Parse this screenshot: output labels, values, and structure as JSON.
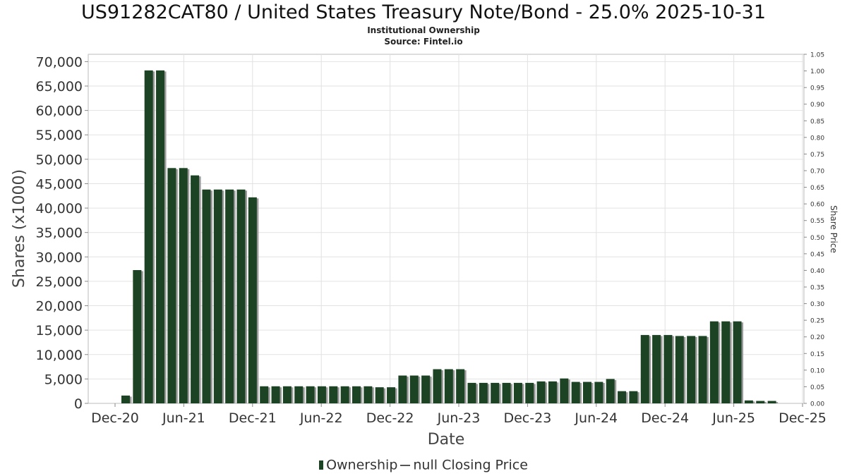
{
  "chart_data": {
    "type": "bar",
    "title": "US91282CAT80 / United States Treasury Note/Bond - 25.0% 2025-10-31",
    "subtitle_1": "Institutional Ownership",
    "subtitle_2": "Source: Fintel.io",
    "xlabel": "Date",
    "ylabel": "Shares (x1000)",
    "y2label": "Share Price",
    "ylim": [
      0,
      71500
    ],
    "y2lim": [
      0,
      1.05
    ],
    "grid": true,
    "legend_position": "bottom",
    "yticks": [
      "0",
      "5,000",
      "10,000",
      "15,000",
      "20,000",
      "25,000",
      "30,000",
      "35,000",
      "40,000",
      "45,000",
      "50,000",
      "55,000",
      "60,000",
      "65,000",
      "70,000"
    ],
    "y2ticks": [
      "0.00",
      "0.05",
      "0.10",
      "0.15",
      "0.20",
      "0.25",
      "0.30",
      "0.35",
      "0.40",
      "0.45",
      "0.50",
      "0.55",
      "0.60",
      "0.65",
      "0.70",
      "0.75",
      "0.80",
      "0.85",
      "0.90",
      "0.95",
      "1.00",
      "1.05"
    ],
    "xticks": [
      "Dec-20",
      "Jun-21",
      "Dec-21",
      "Jun-22",
      "Dec-22",
      "Jun-23",
      "Dec-23",
      "Jun-24",
      "Dec-24",
      "Jun-25",
      "Dec-25"
    ],
    "series": [
      {
        "name": "Ownership",
        "color": "#1c4424",
        "values": [
          1600,
          27300,
          68200,
          68200,
          48200,
          48200,
          46700,
          43800,
          43800,
          43800,
          43800,
          42200,
          3500,
          3500,
          3500,
          3500,
          3500,
          3500,
          3500,
          3500,
          3500,
          3500,
          3300,
          3300,
          5700,
          5700,
          5700,
          7000,
          7000,
          7000,
          4200,
          4200,
          4200,
          4200,
          4200,
          4200,
          4500,
          4500,
          5100,
          4400,
          4400,
          4400,
          5000,
          2500,
          2500,
          14000,
          14000,
          14000,
          13800,
          13800,
          13800,
          16800,
          16800,
          16800,
          600,
          500,
          500
        ]
      }
    ],
    "legend": [
      "Ownership",
      "null Closing Price"
    ]
  }
}
